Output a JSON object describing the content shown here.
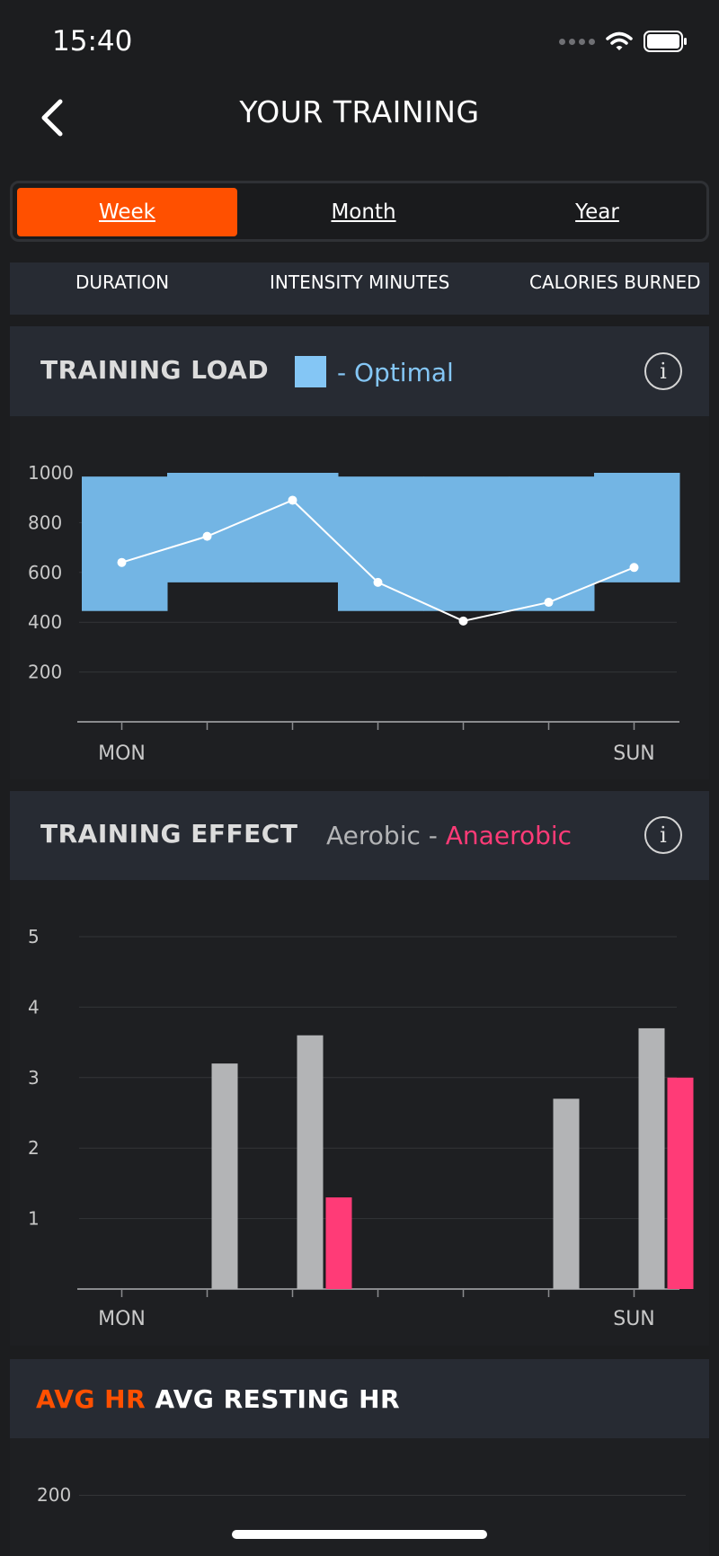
{
  "status_bar": {
    "time": "15:40"
  },
  "nav": {
    "title": "YOUR TRAINING"
  },
  "period_tabs": [
    {
      "label": "Week",
      "selected": true
    },
    {
      "label": "Month",
      "selected": false
    },
    {
      "label": "Year",
      "selected": false
    }
  ],
  "metrics": [
    "DURATION",
    "INTENSITY MINUTES",
    "CALORIES BURNED"
  ],
  "training_load": {
    "title": "TRAINING LOAD",
    "legend_label": "- Optimal",
    "legend_color": "#84c6f5"
  },
  "training_effect": {
    "title": "TRAINING EFFECT",
    "legend_aerobic": "Aerobic -",
    "legend_anaerobic": "Anaerobic",
    "aerobic_color": "#b3b4b6",
    "anaerobic_color": "#ff3b77"
  },
  "heart_rate": {
    "title_avg_hr": "AVG HR",
    "title_avg_resting": "AVG RESTING HR",
    "avg_hr_color": "#ff5000",
    "y_tick": "200"
  },
  "colors": {
    "accent": "#ff5000",
    "background": "#1c1d1f",
    "panel": "#272b33",
    "optimal_band": "#73b5e4"
  },
  "chart_data": [
    {
      "type": "area",
      "title": "TRAINING LOAD",
      "categories": [
        "MON",
        "",
        "",
        "",
        "",
        "",
        "SUN"
      ],
      "x_tick_labels_shown": [
        "MON",
        "SUN"
      ],
      "ylim": [
        0,
        1000
      ],
      "y_ticks": [
        200,
        400,
        600,
        800,
        1000
      ],
      "grid": true,
      "series": [
        {
          "name": "Optimal",
          "kind": "range_band",
          "low": [
            445,
            560,
            560,
            445,
            445,
            445,
            560
          ],
          "high": [
            985,
            1000,
            1000,
            985,
            985,
            985,
            1000
          ]
        },
        {
          "kind": "line",
          "values": [
            640,
            745,
            890,
            560,
            405,
            480,
            620
          ]
        }
      ]
    },
    {
      "type": "bar",
      "title": "TRAINING EFFECT",
      "categories": [
        "MON",
        "",
        "",
        "",
        "",
        "",
        "SUN"
      ],
      "x_tick_labels_shown": [
        "MON",
        "SUN"
      ],
      "ylim": [
        0,
        5
      ],
      "y_ticks": [
        1,
        2,
        3,
        4,
        5
      ],
      "grid": true,
      "series": [
        {
          "name": "Aerobic",
          "values": [
            0,
            3.2,
            3.6,
            0,
            0,
            2.7,
            3.7
          ]
        },
        {
          "name": "Anaerobic",
          "values": [
            0,
            0,
            1.3,
            0,
            0,
            0,
            3.0
          ]
        }
      ]
    }
  ]
}
